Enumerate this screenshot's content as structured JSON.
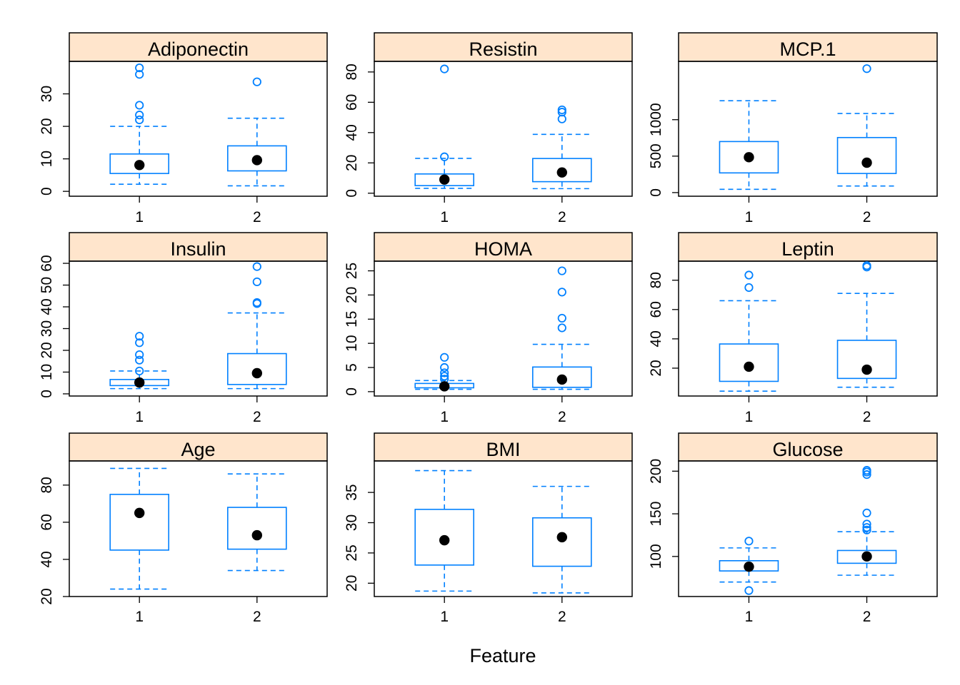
{
  "chart_data": {
    "type": "box",
    "xlabel": "Feature",
    "colors": {
      "box": "#0080ff",
      "median": "#000000",
      "strip": "#ffe5cc",
      "frame": "#000000"
    },
    "panels": [
      {
        "title": "Adiponectin",
        "categories": [
          "1",
          "2"
        ],
        "yticks": [
          0,
          10,
          20,
          30
        ],
        "ylim": [
          -1.5,
          40
        ],
        "boxes": [
          {
            "group": "1",
            "whisker_low": 2.2,
            "q1": 5.5,
            "median": 8.1,
            "q3": 11.5,
            "whisker_high": 20.0,
            "outliers": [
              22.0,
              23.5,
              26.5,
              36.0,
              38.0
            ]
          },
          {
            "group": "2",
            "whisker_low": 1.7,
            "q1": 6.3,
            "median": 9.6,
            "q3": 14.0,
            "whisker_high": 22.5,
            "outliers": [
              33.7
            ]
          }
        ]
      },
      {
        "title": "Resistin",
        "categories": [
          "1",
          "2"
        ],
        "yticks": [
          0,
          20,
          40,
          60,
          80
        ],
        "ylim": [
          -2,
          87
        ],
        "boxes": [
          {
            "group": "1",
            "whisker_low": 3.2,
            "q1": 5.0,
            "median": 9.0,
            "q3": 12.7,
            "whisker_high": 23.0,
            "outliers": [
              24.0,
              82.0
            ]
          },
          {
            "group": "2",
            "whisker_low": 3.0,
            "q1": 7.6,
            "median": 13.7,
            "q3": 22.9,
            "whisker_high": 38.8,
            "outliers": [
              49.0,
              53.5,
              55.0
            ]
          }
        ]
      },
      {
        "title": "MCP.1",
        "categories": [
          "1",
          "2"
        ],
        "yticks": [
          0,
          500,
          1000
        ],
        "ylim": [
          -50,
          1800
        ],
        "boxes": [
          {
            "group": "1",
            "whisker_low": 45,
            "q1": 270,
            "median": 485,
            "q3": 700,
            "whisker_high": 1260,
            "outliers": []
          },
          {
            "group": "2",
            "whisker_low": 90,
            "q1": 262,
            "median": 410,
            "q3": 755,
            "whisker_high": 1085,
            "outliers": [
              1700
            ]
          }
        ]
      },
      {
        "title": "Insulin",
        "categories": [
          "1",
          "2"
        ],
        "yticks": [
          0,
          10,
          20,
          30,
          40,
          50,
          60
        ],
        "ylim": [
          -1,
          61
        ],
        "boxes": [
          {
            "group": "1",
            "whisker_low": 2.4,
            "q1": 3.8,
            "median": 5.2,
            "q3": 6.6,
            "whisker_high": 10.5,
            "outliers": [
              10.5,
              15.5,
              18.0,
              23.5,
              26.5
            ]
          },
          {
            "group": "2",
            "whisker_low": 2.4,
            "q1": 4.3,
            "median": 9.5,
            "q3": 18.5,
            "whisker_high": 37.2,
            "outliers": [
              41.5,
              42.0,
              51.5,
              58.5
            ]
          }
        ]
      },
      {
        "title": "HOMA",
        "categories": [
          "1",
          "2"
        ],
        "yticks": [
          0,
          5,
          10,
          15,
          20,
          25
        ],
        "ylim": [
          -0.9,
          27
        ],
        "boxes": [
          {
            "group": "1",
            "whisker_low": 0.5,
            "q1": 0.8,
            "median": 1.1,
            "q3": 1.7,
            "whisker_high": 2.3,
            "outliers": [
              2.6,
              3.2,
              3.9,
              5.0,
              7.1
            ]
          },
          {
            "group": "2",
            "whisker_low": 0.5,
            "q1": 0.9,
            "median": 2.5,
            "q3": 5.1,
            "whisker_high": 9.8,
            "outliers": [
              13.2,
              15.2,
              20.6,
              25.0
            ]
          }
        ]
      },
      {
        "title": "Leptin",
        "categories": [
          "1",
          "2"
        ],
        "yticks": [
          20,
          40,
          60,
          80
        ],
        "ylim": [
          1,
          93
        ],
        "boxes": [
          {
            "group": "1",
            "whisker_low": 4.3,
            "q1": 11.0,
            "median": 21.0,
            "q3": 36.5,
            "whisker_high": 66.0,
            "outliers": [
              75.0,
              83.5
            ]
          },
          {
            "group": "2",
            "whisker_low": 7.0,
            "q1": 13.0,
            "median": 19.0,
            "q3": 39.0,
            "whisker_high": 71.0,
            "outliers": [
              89.0,
              90.0
            ]
          }
        ]
      },
      {
        "title": "Age",
        "categories": [
          "1",
          "2"
        ],
        "yticks": [
          20,
          40,
          60,
          80
        ],
        "ylim": [
          20,
          93
        ],
        "boxes": [
          {
            "group": "1",
            "whisker_low": 24,
            "q1": 45,
            "median": 65,
            "q3": 75,
            "whisker_high": 89,
            "outliers": []
          },
          {
            "group": "2",
            "whisker_low": 34,
            "q1": 45.5,
            "median": 53,
            "q3": 68,
            "whisker_high": 86,
            "outliers": []
          }
        ]
      },
      {
        "title": "BMI",
        "categories": [
          "1",
          "2"
        ],
        "yticks": [
          20,
          25,
          30,
          35
        ],
        "ylim": [
          17.8,
          40.2
        ],
        "boxes": [
          {
            "group": "1",
            "whisker_low": 18.7,
            "q1": 23.0,
            "median": 27.1,
            "q3": 32.2,
            "whisker_high": 38.6,
            "outliers": []
          },
          {
            "group": "2",
            "whisker_low": 18.4,
            "q1": 22.8,
            "median": 27.6,
            "q3": 30.8,
            "whisker_high": 36.0,
            "outliers": []
          }
        ]
      },
      {
        "title": "Glucose",
        "categories": [
          "1",
          "2"
        ],
        "yticks": [
          100,
          150,
          200
        ],
        "ylim": [
          53,
          212
        ],
        "boxes": [
          {
            "group": "1",
            "whisker_low": 70,
            "q1": 83,
            "median": 88,
            "q3": 95,
            "whisker_high": 110,
            "outliers": [
              60,
              118
            ]
          },
          {
            "group": "2",
            "whisker_low": 78,
            "q1": 92,
            "median": 100,
            "q3": 107,
            "whisker_high": 129,
            "outliers": [
              131,
              134,
              138,
              151,
              196,
              199,
              201
            ]
          }
        ]
      }
    ]
  }
}
